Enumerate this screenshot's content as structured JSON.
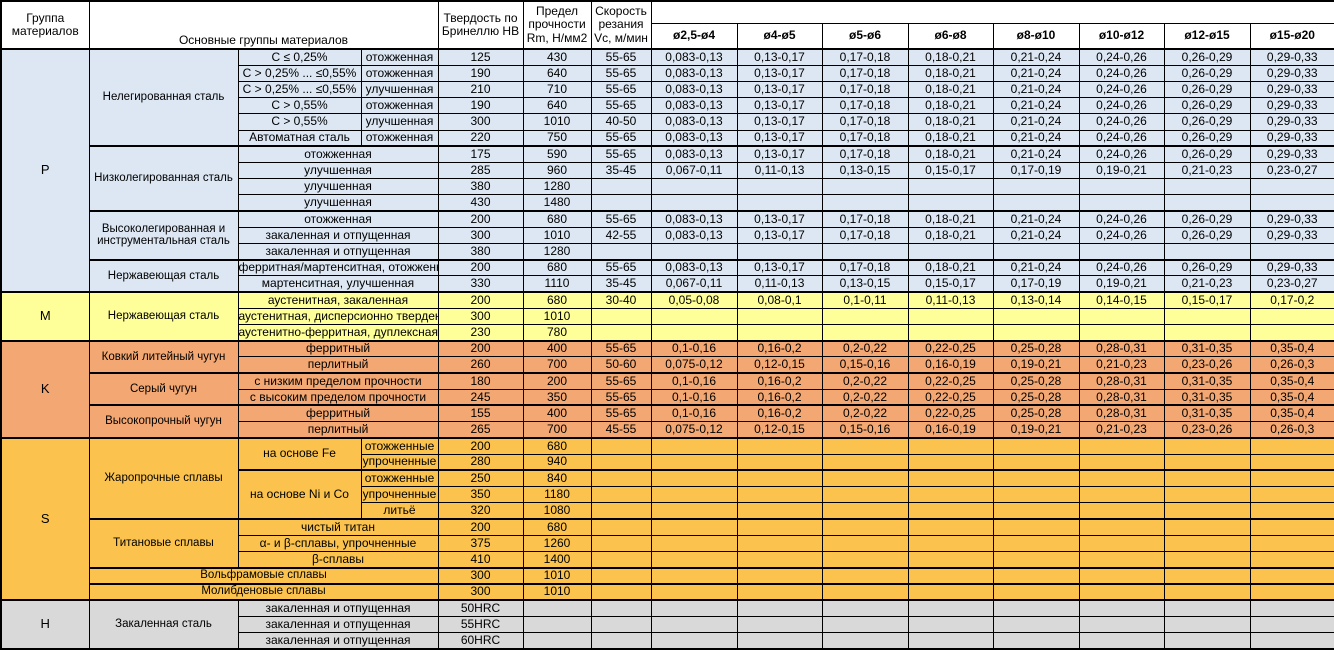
{
  "header": {
    "col_group": "Группа материалов",
    "col_main": "Основные группы материалов",
    "col_hb": "Твердость по Бринеллю HB",
    "col_rm": "Предел прочности Rm, Н/мм2",
    "col_vc": "Скорость резания Vc, м/мин",
    "diameters": [
      "ø2,5-ø4",
      "ø4-ø5",
      "ø5-ø6",
      "ø6-ø8",
      "ø8-ø10",
      "ø10-ø12",
      "ø12-ø15",
      "ø15-ø20"
    ]
  },
  "colors": {
    "group_p_bg": "#dce7f3",
    "group_m_bg": "#ffff99",
    "group_k_bg": "#f3a772",
    "group_s_bg": "#fbc34e",
    "group_h_bg": "#d9d9d9",
    "header_bg": "#ffffff",
    "border": "#000000"
  },
  "feed_presets": {
    "p_std": [
      "0,083-0,13",
      "0,13-0,17",
      "0,17-0,18",
      "0,18-0,21",
      "0,21-0,24",
      "0,24-0,26",
      "0,26-0,29",
      "0,29-0,33"
    ],
    "p_low": [
      "0,067-0,11",
      "0,11-0,13",
      "0,13-0,15",
      "0,15-0,17",
      "0,17-0,19",
      "0,19-0,21",
      "0,21-0,23",
      "0,23-0,27"
    ],
    "m_std": [
      "0,05-0,08",
      "0,08-0,1",
      "0,1-0,11",
      "0,11-0,13",
      "0,13-0,14",
      "0,14-0,15",
      "0,15-0,17",
      "0,17-0,2"
    ],
    "k_ferrite": [
      "0,1-0,16",
      "0,16-0,2",
      "0,2-0,22",
      "0,22-0,25",
      "0,25-0,28",
      "0,28-0,31",
      "0,31-0,35",
      "0,35-0,4"
    ],
    "k_perlite": [
      "0,075-0,12",
      "0,12-0,15",
      "0,15-0,16",
      "0,16-0,19",
      "0,19-0,21",
      "0,21-0,23",
      "0,23-0,26",
      "0,26-0,3"
    ]
  },
  "table": {
    "groups": [
      {
        "letter": "P",
        "families": [
          {
            "name": "Нелегированная сталь",
            "rows": [
              {
                "sub1": "C ≤ 0,25%",
                "sub2": "отожженная",
                "hb": "125",
                "rm": "430",
                "vc": "55-65",
                "feeds": "p_std"
              },
              {
                "sub1": "C > 0,25% ... ≤0,55%",
                "sub2": "отожженная",
                "hb": "190",
                "rm": "640",
                "vc": "55-65",
                "feeds": "p_std"
              },
              {
                "sub1": "C > 0,25% ... ≤0,55%",
                "sub2": "улучшенная",
                "hb": "210",
                "rm": "710",
                "vc": "55-65",
                "feeds": "p_std"
              },
              {
                "sub1": "C > 0,55%",
                "sub2": "отожженная",
                "hb": "190",
                "rm": "640",
                "vc": "55-65",
                "feeds": "p_std"
              },
              {
                "sub1": "C > 0,55%",
                "sub2": "улучшенная",
                "hb": "300",
                "rm": "1010",
                "vc": "40-50",
                "feeds": "p_std"
              },
              {
                "sub1": "Автоматная сталь",
                "sub2": "отожженная",
                "hb": "220",
                "rm": "750",
                "vc": "55-65",
                "feeds": "p_std"
              }
            ]
          },
          {
            "name": "Низколегированная сталь",
            "rows": [
              {
                "sub": "отожженная",
                "hb": "175",
                "rm": "590",
                "vc": "55-65",
                "feeds": "p_std"
              },
              {
                "sub": "улучшенная",
                "hb": "285",
                "rm": "960",
                "vc": "35-45",
                "feeds": "p_low"
              },
              {
                "sub": "улучшенная",
                "hb": "380",
                "rm": "1280",
                "vc": ""
              },
              {
                "sub": "улучшенная",
                "hb": "430",
                "rm": "1480",
                "vc": ""
              }
            ]
          },
          {
            "name": "Высоколегированная и инструментальная сталь",
            "rows": [
              {
                "sub": "отожженная",
                "hb": "200",
                "rm": "680",
                "vc": "55-65",
                "feeds": "p_std"
              },
              {
                "sub": "закаленная и отпущенная",
                "hb": "300",
                "rm": "1010",
                "vc": "42-55",
                "feeds": "p_std"
              },
              {
                "sub": "закаленная и отпущенная",
                "hb": "380",
                "rm": "1280",
                "vc": ""
              }
            ]
          },
          {
            "name": "Нержавеющая сталь",
            "rows": [
              {
                "sub": "ферритная/мартенситная, отожженная",
                "hb": "200",
                "rm": "680",
                "vc": "55-65",
                "feeds": "p_std"
              },
              {
                "sub": "мартенситная, улучшенная",
                "hb": "330",
                "rm": "1110",
                "vc": "35-45",
                "feeds": "p_low"
              }
            ]
          }
        ]
      },
      {
        "letter": "M",
        "families": [
          {
            "name": "Нержавеющая сталь",
            "rows": [
              {
                "sub": "аустенитная, закаленная",
                "hb": "200",
                "rm": "680",
                "vc": "30-40",
                "feeds": "m_std"
              },
              {
                "sub": "аустенитная, дисперсионно твердеющая",
                "hb": "300",
                "rm": "1010",
                "vc": ""
              },
              {
                "sub": "аустенитно-ферритная, дуплексная",
                "hb": "230",
                "rm": "780",
                "vc": ""
              }
            ]
          }
        ]
      },
      {
        "letter": "K",
        "families": [
          {
            "name": "Ковкий литейный чугун",
            "rows": [
              {
                "sub": "ферритный",
                "hb": "200",
                "rm": "400",
                "vc": "55-65",
                "feeds": "k_ferrite"
              },
              {
                "sub": "перлитный",
                "hb": "260",
                "rm": "700",
                "vc": "50-60",
                "feeds": "k_perlite"
              }
            ]
          },
          {
            "name": "Серый чугун",
            "rows": [
              {
                "sub": "с низким пределом прочности",
                "hb": "180",
                "rm": "200",
                "vc": "55-65",
                "feeds": "k_ferrite"
              },
              {
                "sub": "с высоким пределом прочности",
                "hb": "245",
                "rm": "350",
                "vc": "55-65",
                "feeds": "k_ferrite"
              }
            ]
          },
          {
            "name": "Высокопрочный чугун",
            "rows": [
              {
                "sub": "ферритный",
                "hb": "155",
                "rm": "400",
                "vc": "55-65",
                "feeds": "k_ferrite"
              },
              {
                "sub": "перлитный",
                "hb": "265",
                "rm": "700",
                "vc": "45-55",
                "feeds": "k_perlite"
              }
            ]
          }
        ]
      },
      {
        "letter": "S",
        "families": [
          {
            "name": "Жаропрочные сплавы",
            "rows": [
              {
                "base": "на основе Fe",
                "base_span": 2,
                "sub2": "отожженные",
                "hb": "200",
                "rm": "680",
                "vc": ""
              },
              {
                "sub2": "упрочненные",
                "hb": "280",
                "rm": "940",
                "vc": ""
              },
              {
                "base": "на основе Ni и Co",
                "base_span": 3,
                "sub2": "отожженные",
                "hb": "250",
                "rm": "840",
                "vc": "",
                "sep": true
              },
              {
                "sub2": "упрочненные",
                "hb": "350",
                "rm": "1180",
                "vc": ""
              },
              {
                "sub2": "литьё",
                "hb": "320",
                "rm": "1080",
                "vc": ""
              }
            ]
          },
          {
            "name": "Титановые сплавы",
            "rows": [
              {
                "sub": "чистый титан",
                "hb": "200",
                "rm": "680",
                "vc": ""
              },
              {
                "sub": "α- и β-сплавы, упрочненные",
                "hb": "375",
                "rm": "1260",
                "vc": ""
              },
              {
                "sub": "β-сплавы",
                "hb": "410",
                "rm": "1400",
                "vc": ""
              }
            ]
          },
          {
            "name": "Вольфрамовые сплавы",
            "span_all": true,
            "rows": [
              {
                "hb": "300",
                "rm": "1010",
                "vc": ""
              }
            ]
          },
          {
            "name": "Молибденовые сплавы",
            "span_all": true,
            "rows": [
              {
                "hb": "300",
                "rm": "1010",
                "vc": ""
              }
            ]
          }
        ]
      },
      {
        "letter": "H",
        "families": [
          {
            "name": "Закаленная сталь",
            "rows": [
              {
                "sub": "закаленная и отпущенная",
                "hb": "50HRC",
                "rm": "",
                "vc": ""
              },
              {
                "sub": "закаленная и отпущенная",
                "hb": "55HRC",
                "rm": "",
                "vc": ""
              },
              {
                "sub": "закаленная и отпущенная",
                "hb": "60HRC",
                "rm": "",
                "vc": ""
              }
            ]
          }
        ]
      }
    ]
  }
}
